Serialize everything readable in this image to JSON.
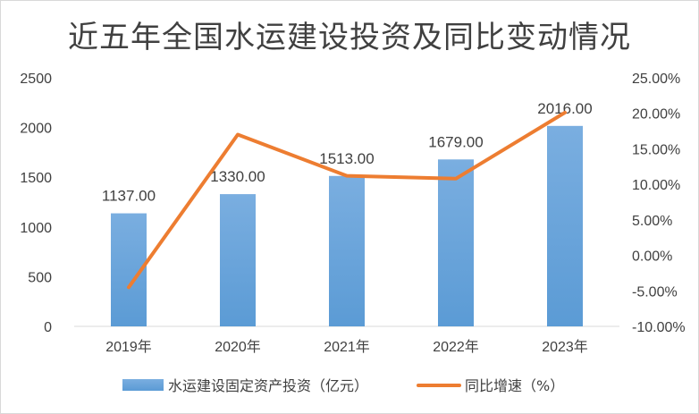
{
  "chart_data": {
    "type": "bar",
    "title": "近五年全国水运建设投资及同比变动情况",
    "categories": [
      "2019年",
      "2020年",
      "2021年",
      "2022年",
      "2023年"
    ],
    "series": [
      {
        "name": "水运建设固定资产投资（亿元）",
        "type": "bar",
        "axis": "left",
        "values": [
          1137.0,
          1330.0,
          1513.0,
          1679.0,
          2016.0
        ],
        "labels": [
          "1137.00",
          "1330.00",
          "1513.00",
          "1679.00",
          "2016.00"
        ],
        "color": "#5b9bd5"
      },
      {
        "name": "同比增速（%）",
        "type": "line",
        "axis": "right",
        "values": [
          -4.5,
          17.0,
          11.2,
          10.8,
          20.1
        ],
        "color": "#ed7d31"
      }
    ],
    "y_left": {
      "ylim": [
        0,
        2500
      ],
      "ticks": [
        "2500",
        "2000",
        "1500",
        "1000",
        "500",
        "0"
      ]
    },
    "y_right": {
      "ylim": [
        -10,
        25
      ],
      "ticks": [
        "25.00%",
        "20.00%",
        "15.00%",
        "10.00%",
        "5.00%",
        "0.00%",
        "-5.00%",
        "-10.00%"
      ]
    },
    "grid": false,
    "legend_position": "bottom"
  }
}
